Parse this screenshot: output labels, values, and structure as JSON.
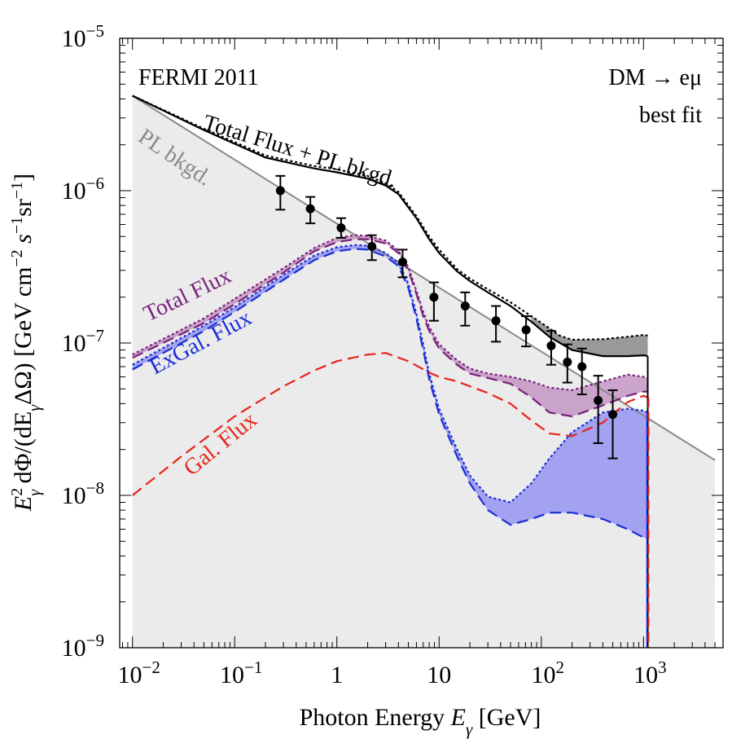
{
  "chart_data": {
    "type": "line",
    "title": "",
    "xscale": "log",
    "yscale": "log",
    "xlim": [
      0.0075,
      6000
    ],
    "ylim": [
      1e-09,
      1e-05
    ],
    "xlabel": {
      "prefix": "Photon Energy ",
      "var": "E",
      "sub": "γ",
      "suffix": " [GeV]"
    },
    "ylabel": {
      "prefix": "E",
      "sub": "γ",
      "sup": "2",
      "middle": " dΦ/(dE",
      "sub2": "γ",
      "suffix": "ΔΩ)  [GeV cm",
      "e1": "−2",
      "s": " s",
      "e2": "−1",
      "sr": "sr",
      "e3": "−1",
      "close": "]"
    },
    "x_ticks": [
      {
        "value": 0.01,
        "base": "10",
        "exp": "−2"
      },
      {
        "value": 0.1,
        "base": "10",
        "exp": "−1"
      },
      {
        "value": 1,
        "base": "1",
        "exp": ""
      },
      {
        "value": 10,
        "base": "10",
        "exp": ""
      },
      {
        "value": 100,
        "base": "10",
        "exp": "2"
      },
      {
        "value": 1000,
        "base": "10",
        "exp": "3"
      }
    ],
    "y_ticks": [
      {
        "value": 1e-09,
        "base": "10",
        "exp": "−9"
      },
      {
        "value": 1e-08,
        "base": "10",
        "exp": "−8"
      },
      {
        "value": 1e-07,
        "base": "10",
        "exp": "−7"
      },
      {
        "value": 1e-06,
        "base": "10",
        "exp": "−6"
      },
      {
        "value": 1e-05,
        "base": "10",
        "exp": "−5"
      }
    ],
    "annotations": {
      "corner_left": "FERMI 2011",
      "corner_right_line1": "DM → eμ",
      "corner_right_line2": "best fit",
      "pl_label": "PL bkgd.",
      "total_pl_label": "Total Flux + PL bkgd.",
      "total_flux_label": "Total Flux",
      "exgal_label": "ExGal. Flux",
      "gal_label": "Gal. Flux"
    },
    "colors": {
      "black": "#000000",
      "gray_line": "#8a8a8a",
      "bkg_fill": "#ebebeb",
      "purple": "#7a1f7a",
      "purple_fill": "#c79bc7",
      "blue": "#1a2ed6",
      "blue_fill": "#9e9ef0",
      "red": "#e8231a",
      "gray_band": "#999999"
    },
    "series": [
      {
        "name": "PL bkgd.",
        "style": "solid",
        "color": "gray_line",
        "points": [
          [
            0.01,
            4.2e-06
          ],
          [
            5000,
            1.7e-08
          ]
        ]
      },
      {
        "name": "Total Flux + PL bkgd. (lower)",
        "style": "solid",
        "color": "black",
        "points": [
          [
            0.01,
            4.2e-06
          ],
          [
            0.05,
            2.5e-06
          ],
          [
            0.2,
            1.65e-06
          ],
          [
            0.6,
            1.4e-06
          ],
          [
            1,
            1.32e-06
          ],
          [
            2,
            1.2e-06
          ],
          [
            3,
            1.08e-06
          ],
          [
            4,
            9.5e-07
          ],
          [
            6,
            6.6e-07
          ],
          [
            8,
            4.8e-07
          ],
          [
            10,
            3.9e-07
          ],
          [
            15,
            2.95e-07
          ],
          [
            20,
            2.55e-07
          ],
          [
            30,
            2.15e-07
          ],
          [
            50,
            1.75e-07
          ],
          [
            80,
            1.38e-07
          ],
          [
            120,
            1.1e-07
          ],
          [
            200,
            9e-08
          ],
          [
            400,
            8.2e-08
          ],
          [
            700,
            8.2e-08
          ],
          [
            1000,
            8.3e-08
          ],
          [
            1100,
            8.2e-08
          ]
        ]
      },
      {
        "name": "Total Flux + PL bkgd. (upper)",
        "style": "dotted",
        "color": "black",
        "points": [
          [
            0.01,
            4.2e-06
          ],
          [
            0.05,
            2.55e-06
          ],
          [
            0.2,
            1.7e-06
          ],
          [
            0.6,
            1.45e-06
          ],
          [
            1,
            1.38e-06
          ],
          [
            2,
            1.25e-06
          ],
          [
            3,
            1.12e-06
          ],
          [
            4,
            9.8e-07
          ],
          [
            6,
            6.8e-07
          ],
          [
            8,
            5e-07
          ],
          [
            10,
            4.1e-07
          ],
          [
            15,
            3.05e-07
          ],
          [
            20,
            2.65e-07
          ],
          [
            30,
            2.25e-07
          ],
          [
            50,
            1.85e-07
          ],
          [
            80,
            1.5e-07
          ],
          [
            120,
            1.25e-07
          ],
          [
            150,
            1.12e-07
          ],
          [
            200,
            1.05e-07
          ],
          [
            400,
            1.06e-07
          ],
          [
            700,
            1.1e-07
          ],
          [
            1000,
            1.13e-07
          ],
          [
            1100,
            1.12e-07
          ]
        ]
      },
      {
        "name": "Total Flux (lower)",
        "style": "dashed",
        "color": "purple",
        "points": [
          [
            0.01,
            8e-08
          ],
          [
            0.05,
            1.35e-07
          ],
          [
            0.1,
            1.8e-07
          ],
          [
            0.3,
            2.9e-07
          ],
          [
            0.6,
            4e-07
          ],
          [
            1,
            4.6e-07
          ],
          [
            1.5,
            4.8e-07
          ],
          [
            2,
            4.8e-07
          ],
          [
            3,
            4.5e-07
          ],
          [
            4,
            3.9e-07
          ],
          [
            5,
            3e-07
          ],
          [
            6,
            2.1e-07
          ],
          [
            7,
            1.5e-07
          ],
          [
            8,
            1.2e-07
          ],
          [
            10,
            9.2e-08
          ],
          [
            15,
            7.2e-08
          ],
          [
            20,
            6.3e-08
          ],
          [
            30,
            5.9e-08
          ],
          [
            50,
            5.4e-08
          ],
          [
            80,
            4.4e-08
          ],
          [
            120,
            3.5e-08
          ],
          [
            200,
            3.3e-08
          ],
          [
            400,
            3.9e-08
          ],
          [
            700,
            4.5e-08
          ],
          [
            1000,
            4.8e-08
          ],
          [
            1100,
            4.8e-08
          ]
        ]
      },
      {
        "name": "Total Flux (upper)",
        "style": "dotted",
        "color": "purple",
        "points": [
          [
            0.01,
            8.4e-08
          ],
          [
            0.05,
            1.45e-07
          ],
          [
            0.1,
            1.95e-07
          ],
          [
            0.3,
            3.1e-07
          ],
          [
            0.6,
            4.2e-07
          ],
          [
            1,
            4.9e-07
          ],
          [
            1.5,
            5.1e-07
          ],
          [
            2,
            5.05e-07
          ],
          [
            3,
            4.7e-07
          ],
          [
            4,
            4.05e-07
          ],
          [
            5,
            3.15e-07
          ],
          [
            6,
            2.2e-07
          ],
          [
            7,
            1.6e-07
          ],
          [
            8,
            1.28e-07
          ],
          [
            10,
            9.8e-08
          ],
          [
            15,
            7.7e-08
          ],
          [
            20,
            6.8e-08
          ],
          [
            30,
            6.3e-08
          ],
          [
            50,
            6e-08
          ],
          [
            80,
            5.6e-08
          ],
          [
            120,
            5.1e-08
          ],
          [
            200,
            4.9e-08
          ],
          [
            400,
            5.6e-08
          ],
          [
            700,
            6.2e-08
          ],
          [
            1000,
            6e-08
          ],
          [
            1100,
            5.9e-08
          ]
        ]
      },
      {
        "name": "ExGal. Flux (lower)",
        "style": "dashed",
        "color": "blue",
        "points": [
          [
            0.01,
            6.7e-08
          ],
          [
            0.05,
            1.2e-07
          ],
          [
            0.1,
            1.6e-07
          ],
          [
            0.3,
            2.6e-07
          ],
          [
            0.6,
            3.5e-07
          ],
          [
            1,
            4e-07
          ],
          [
            1.5,
            4.15e-07
          ],
          [
            2,
            4.1e-07
          ],
          [
            3,
            3.7e-07
          ],
          [
            4,
            3.2e-07
          ],
          [
            5,
            2.3e-07
          ],
          [
            6,
            1.45e-07
          ],
          [
            7,
            9e-08
          ],
          [
            8,
            5.8e-08
          ],
          [
            10,
            3.4e-08
          ],
          [
            15,
            1.8e-08
          ],
          [
            20,
            1.2e-08
          ],
          [
            30,
            8e-09
          ],
          [
            50,
            6.4e-09
          ],
          [
            80,
            7e-09
          ],
          [
            120,
            7.7e-09
          ],
          [
            200,
            7.7e-09
          ],
          [
            400,
            7e-09
          ],
          [
            700,
            6e-09
          ],
          [
            1000,
            5.3e-09
          ],
          [
            1100,
            5.2e-09
          ]
        ]
      },
      {
        "name": "ExGal. Flux (upper)",
        "style": "dotted",
        "color": "blue",
        "points": [
          [
            0.01,
            7.2e-08
          ],
          [
            0.05,
            1.3e-07
          ],
          [
            0.1,
            1.72e-07
          ],
          [
            0.3,
            2.8e-07
          ],
          [
            0.6,
            3.75e-07
          ],
          [
            1,
            4.25e-07
          ],
          [
            1.5,
            4.4e-07
          ],
          [
            2,
            4.35e-07
          ],
          [
            3,
            3.9e-07
          ],
          [
            4,
            3.35e-07
          ],
          [
            5,
            2.45e-07
          ],
          [
            6,
            1.55e-07
          ],
          [
            7,
            9.8e-08
          ],
          [
            8,
            6.3e-08
          ],
          [
            10,
            3.7e-08
          ],
          [
            15,
            2e-08
          ],
          [
            20,
            1.35e-08
          ],
          [
            30,
            9.8e-09
          ],
          [
            50,
            9e-09
          ],
          [
            80,
            1.2e-08
          ],
          [
            120,
            1.75e-08
          ],
          [
            200,
            2.6e-08
          ],
          [
            400,
            3.5e-08
          ],
          [
            700,
            3.7e-08
          ],
          [
            1000,
            3.6e-08
          ],
          [
            1100,
            3.5e-08
          ]
        ]
      },
      {
        "name": "Gal. Flux",
        "style": "dashed",
        "color": "red",
        "points": [
          [
            0.01,
            1e-08
          ],
          [
            0.03,
            1.8e-08
          ],
          [
            0.1,
            3.3e-08
          ],
          [
            0.3,
            5.2e-08
          ],
          [
            0.6,
            6.6e-08
          ],
          [
            1,
            7.6e-08
          ],
          [
            2,
            8.4e-08
          ],
          [
            3,
            8.6e-08
          ],
          [
            5,
            7.6e-08
          ],
          [
            8,
            6.4e-08
          ],
          [
            10,
            6e-08
          ],
          [
            15,
            5.6e-08
          ],
          [
            20,
            5.2e-08
          ],
          [
            30,
            4.7e-08
          ],
          [
            50,
            4e-08
          ],
          [
            80,
            3.1e-08
          ],
          [
            120,
            2.55e-08
          ],
          [
            200,
            2.45e-08
          ],
          [
            400,
            3e-08
          ],
          [
            700,
            4.1e-08
          ],
          [
            1000,
            4.5e-08
          ],
          [
            1100,
            4.4e-08
          ]
        ]
      }
    ],
    "data_points": [
      {
        "x": 0.28,
        "y": 1e-06,
        "ylo": 7.5e-07,
        "yhi": 1.25e-06
      },
      {
        "x": 0.55,
        "y": 7.6e-07,
        "ylo": 6.1e-07,
        "yhi": 9.1e-07
      },
      {
        "x": 1.1,
        "y": 5.7e-07,
        "ylo": 4.9e-07,
        "yhi": 6.6e-07
      },
      {
        "x": 2.2,
        "y": 4.3e-07,
        "ylo": 3.5e-07,
        "yhi": 5.1e-07
      },
      {
        "x": 4.4,
        "y": 3.4e-07,
        "ylo": 2.7e-07,
        "yhi": 4.1e-07
      },
      {
        "x": 8.9,
        "y": 2e-07,
        "ylo": 1.4e-07,
        "yhi": 2.5e-07
      },
      {
        "x": 18,
        "y": 1.75e-07,
        "ylo": 1.3e-07,
        "yhi": 2.15e-07
      },
      {
        "x": 36,
        "y": 1.4e-07,
        "ylo": 1.02e-07,
        "yhi": 1.75e-07
      },
      {
        "x": 71,
        "y": 1.22e-07,
        "ylo": 9.5e-08,
        "yhi": 1.5e-07
      },
      {
        "x": 125,
        "y": 9.6e-08,
        "ylo": 7.2e-08,
        "yhi": 1.2e-07
      },
      {
        "x": 180,
        "y": 7.5e-08,
        "ylo": 5.5e-08,
        "yhi": 9.8e-08
      },
      {
        "x": 250,
        "y": 7e-08,
        "ylo": 4.6e-08,
        "yhi": 9.2e-08
      },
      {
        "x": 360,
        "y": 4.2e-08,
        "ylo": 2.2e-08,
        "yhi": 6.1e-08
      },
      {
        "x": 500,
        "y": 3.4e-08,
        "ylo": 1.75e-08,
        "yhi": 4.9e-08
      }
    ]
  }
}
